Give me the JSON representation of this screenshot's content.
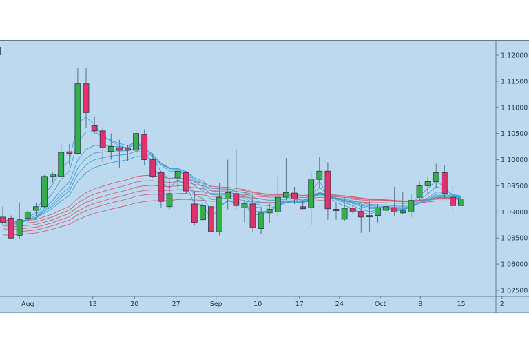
{
  "colors": {
    "background": "#bcd9ef",
    "axis_bg": "#bcd9ef",
    "border": "#5b7a99",
    "up_candle": "#35b04a",
    "down_candle": "#e0336b",
    "candle_outline": "#2b3a4a",
    "wick": "#5b6e80",
    "ema_short": "#3aa0d8",
    "ema_long": "#d0606a",
    "label": "#2a3a4a"
  },
  "chart_data": {
    "type": "candlestick",
    "title": "",
    "xlabel": "",
    "ylabel": "",
    "ylim": [
      1.0735,
      1.1215
    ],
    "y_ticks": [
      "1.12000",
      "1.11500",
      "1.11000",
      "1.10500",
      "1.10000",
      "1.09500",
      "1.09000",
      "1.08500",
      "1.08000",
      "1.07500"
    ],
    "y_tick_values": [
      1.12,
      1.115,
      1.11,
      1.105,
      1.1,
      1.095,
      1.09,
      1.085,
      1.08,
      1.075
    ],
    "x_ticks": [
      {
        "label": "Aug",
        "index": 3
      },
      {
        "label": "13",
        "index": 10.8
      },
      {
        "label": "20",
        "index": 15.8
      },
      {
        "label": "27",
        "index": 20.8
      },
      {
        "label": "Sep",
        "index": 25.6
      },
      {
        "label": "10",
        "index": 30.6
      },
      {
        "label": "17",
        "index": 35.6
      },
      {
        "label": "24",
        "index": 40.4
      },
      {
        "label": "Oct",
        "index": 45.3
      },
      {
        "label": "8",
        "index": 50.1
      },
      {
        "label": "15",
        "index": 55.0
      },
      {
        "label": "2",
        "index": 59.9
      }
    ],
    "grid": false,
    "candles": [
      {
        "o": 1.089,
        "h": 1.091,
        "l": 1.0875,
        "c": 1.088
      },
      {
        "o": 1.0888,
        "h": 1.0893,
        "l": 1.0848,
        "c": 1.085
      },
      {
        "o": 1.0855,
        "h": 1.0918,
        "l": 1.0848,
        "c": 1.0885
      },
      {
        "o": 1.0888,
        "h": 1.0905,
        "l": 1.0878,
        "c": 1.09
      },
      {
        "o": 1.0903,
        "h": 1.0918,
        "l": 1.0893,
        "c": 1.091
      },
      {
        "o": 1.091,
        "h": 1.097,
        "l": 1.0908,
        "c": 1.0968
      },
      {
        "o": 1.0968,
        "h": 1.0975,
        "l": 1.0955,
        "c": 1.0972
      },
      {
        "o": 1.0968,
        "h": 1.103,
        "l": 1.0966,
        "c": 1.1014
      },
      {
        "o": 1.1015,
        "h": 1.103,
        "l": 1.099,
        "c": 1.1012
      },
      {
        "o": 1.1012,
        "h": 1.1175,
        "l": 1.101,
        "c": 1.1145
      },
      {
        "o": 1.1145,
        "h": 1.1175,
        "l": 1.106,
        "c": 1.109
      },
      {
        "o": 1.1065,
        "h": 1.1083,
        "l": 1.1048,
        "c": 1.1055
      },
      {
        "o": 1.1055,
        "h": 1.1063,
        "l": 1.0995,
        "c": 1.1023
      },
      {
        "o": 1.1016,
        "h": 1.105,
        "l": 1.1,
        "c": 1.1025
      },
      {
        "o": 1.1023,
        "h": 1.1038,
        "l": 1.0985,
        "c": 1.1018
      },
      {
        "o": 1.1022,
        "h": 1.1028,
        "l": 1.0998,
        "c": 1.1018
      },
      {
        "o": 1.1018,
        "h": 1.1058,
        "l": 1.101,
        "c": 1.105
      },
      {
        "o": 1.1048,
        "h": 1.1058,
        "l": 1.099,
        "c": 1.1
      },
      {
        "o": 1.1,
        "h": 1.1012,
        "l": 1.0965,
        "c": 1.0968
      },
      {
        "o": 1.0975,
        "h": 1.0978,
        "l": 1.0908,
        "c": 1.092
      },
      {
        "o": 1.091,
        "h": 1.0962,
        "l": 1.0905,
        "c": 1.0935
      },
      {
        "o": 1.0965,
        "h": 1.098,
        "l": 1.0945,
        "c": 1.0978
      },
      {
        "o": 1.0975,
        "h": 1.0978,
        "l": 1.0935,
        "c": 1.094
      },
      {
        "o": 1.0915,
        "h": 1.094,
        "l": 1.0875,
        "c": 1.088
      },
      {
        "o": 1.0885,
        "h": 1.0962,
        "l": 1.088,
        "c": 1.0912
      },
      {
        "o": 1.091,
        "h": 1.0945,
        "l": 1.085,
        "c": 1.0862
      },
      {
        "o": 1.0862,
        "h": 1.0955,
        "l": 1.0855,
        "c": 1.0928
      },
      {
        "o": 1.0925,
        "h": 1.1,
        "l": 1.0905,
        "c": 1.0937
      },
      {
        "o": 1.0935,
        "h": 1.102,
        "l": 1.0905,
        "c": 1.0912
      },
      {
        "o": 1.0908,
        "h": 1.092,
        "l": 1.088,
        "c": 1.0916
      },
      {
        "o": 1.0915,
        "h": 1.0935,
        "l": 1.0862,
        "c": 1.087
      },
      {
        "o": 1.0868,
        "h": 1.091,
        "l": 1.0858,
        "c": 1.0898
      },
      {
        "o": 1.0898,
        "h": 1.0915,
        "l": 1.0878,
        "c": 1.0905
      },
      {
        "o": 1.09,
        "h": 1.0968,
        "l": 1.089,
        "c": 1.0928
      },
      {
        "o": 1.0928,
        "h": 1.1003,
        "l": 1.0922,
        "c": 1.0937
      },
      {
        "o": 1.0936,
        "h": 1.0948,
        "l": 1.0915,
        "c": 1.0925
      },
      {
        "o": 1.091,
        "h": 1.0922,
        "l": 1.0905,
        "c": 1.0906
      },
      {
        "o": 1.0908,
        "h": 1.0975,
        "l": 1.0875,
        "c": 1.0963
      },
      {
        "o": 1.0962,
        "h": 1.1005,
        "l": 1.0945,
        "c": 1.0978
      },
      {
        "o": 1.0978,
        "h": 1.0995,
        "l": 1.0885,
        "c": 1.0906
      },
      {
        "o": 1.0905,
        "h": 1.0918,
        "l": 1.0885,
        "c": 1.0903
      },
      {
        "o": 1.0886,
        "h": 1.0928,
        "l": 1.0882,
        "c": 1.0907
      },
      {
        "o": 1.0907,
        "h": 1.0918,
        "l": 1.0895,
        "c": 1.09
      },
      {
        "o": 1.0901,
        "h": 1.0912,
        "l": 1.086,
        "c": 1.089
      },
      {
        "o": 1.0892,
        "h": 1.092,
        "l": 1.0862,
        "c": 1.0893
      },
      {
        "o": 1.0893,
        "h": 1.0915,
        "l": 1.088,
        "c": 1.0908
      },
      {
        "o": 1.0903,
        "h": 1.093,
        "l": 1.0898,
        "c": 1.091
      },
      {
        "o": 1.0908,
        "h": 1.0948,
        "l": 1.0892,
        "c": 1.09
      },
      {
        "o": 1.0898,
        "h": 1.0938,
        "l": 1.0895,
        "c": 1.0902
      },
      {
        "o": 1.09,
        "h": 1.0935,
        "l": 1.089,
        "c": 1.0922
      },
      {
        "o": 1.0928,
        "h": 1.0958,
        "l": 1.092,
        "c": 1.095
      },
      {
        "o": 1.095,
        "h": 1.0968,
        "l": 1.0935,
        "c": 1.0958
      },
      {
        "o": 1.0958,
        "h": 1.0992,
        "l": 1.0945,
        "c": 1.0975
      },
      {
        "o": 1.0975,
        "h": 1.099,
        "l": 1.0925,
        "c": 1.0935
      },
      {
        "o": 1.0928,
        "h": 1.095,
        "l": 1.0898,
        "c": 1.0912
      },
      {
        "o": 1.0912,
        "h": 1.0952,
        "l": 1.0905,
        "c": 1.0925
      }
    ],
    "series": [
      {
        "name": "EMA short group",
        "color": "#3aa0d8",
        "count": 6
      },
      {
        "name": "EMA long group",
        "color": "#d0606a",
        "count": 6
      }
    ]
  }
}
